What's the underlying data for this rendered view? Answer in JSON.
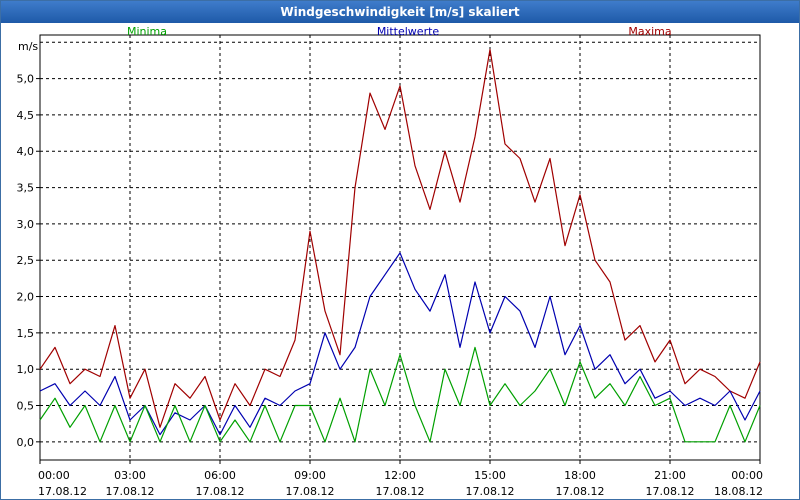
{
  "window": {
    "title": "Windgeschwindigkeit [m/s] skaliert"
  },
  "chart_data": {
    "type": "line",
    "title": "Windgeschwindigkeit [m/s] skaliert",
    "ylabel": "m/s",
    "xlabel": "",
    "ylim": [
      -0.25,
      5.6
    ],
    "xlim": [
      0,
      24
    ],
    "grid": true,
    "legend_position": "top",
    "y_ticks": [
      "0,0",
      "0,5",
      "1,0",
      "1,5",
      "2,0",
      "2,5",
      "3,0",
      "3,5",
      "4,0",
      "4,5",
      "5,0"
    ],
    "x_ticks": [
      {
        "time": "00:00",
        "date": "17.08.12"
      },
      {
        "time": "03:00",
        "date": "17.08.12"
      },
      {
        "time": "06:00",
        "date": "17.08.12"
      },
      {
        "time": "09:00",
        "date": "17.08.12"
      },
      {
        "time": "12:00",
        "date": "17.08.12"
      },
      {
        "time": "15:00",
        "date": "17.08.12"
      },
      {
        "time": "18:00",
        "date": "17.08.12"
      },
      {
        "time": "21:00",
        "date": "17.08.12"
      },
      {
        "time": "00:00",
        "date": "18.08.12"
      }
    ],
    "series": [
      {
        "name": "Minima",
        "color": "#00a000",
        "x": [
          0,
          0.5,
          1,
          1.5,
          2,
          2.5,
          3,
          3.5,
          4,
          4.5,
          5,
          5.5,
          6,
          6.5,
          7,
          7.5,
          8,
          8.5,
          9,
          9.5,
          10,
          10.5,
          11,
          11.5,
          12,
          12.5,
          13,
          13.5,
          14,
          14.5,
          15,
          15.5,
          16,
          16.5,
          17,
          17.5,
          18,
          18.5,
          19,
          19.5,
          20,
          20.5,
          21,
          21.5,
          22,
          22.5,
          23,
          23.5,
          24
        ],
        "values": [
          0.3,
          0.6,
          0.2,
          0.5,
          0.0,
          0.5,
          0.0,
          0.5,
          0.0,
          0.5,
          0.0,
          0.5,
          0.0,
          0.3,
          0.0,
          0.5,
          0.0,
          0.5,
          0.5,
          0.0,
          0.6,
          0.0,
          1.0,
          0.5,
          1.2,
          0.5,
          0.0,
          1.0,
          0.5,
          1.3,
          0.5,
          0.8,
          0.5,
          0.7,
          1.0,
          0.5,
          1.1,
          0.6,
          0.8,
          0.5,
          0.9,
          0.5,
          0.6,
          0.0,
          0.0,
          0.0,
          0.5,
          0.0,
          0.5
        ]
      },
      {
        "name": "Mittelwerte",
        "color": "#0000b0",
        "x": [
          0,
          0.5,
          1,
          1.5,
          2,
          2.5,
          3,
          3.5,
          4,
          4.5,
          5,
          5.5,
          6,
          6.5,
          7,
          7.5,
          8,
          8.5,
          9,
          9.5,
          10,
          10.5,
          11,
          11.5,
          12,
          12.5,
          13,
          13.5,
          14,
          14.5,
          15,
          15.5,
          16,
          16.5,
          17,
          17.5,
          18,
          18.5,
          19,
          19.5,
          20,
          20.5,
          21,
          21.5,
          22,
          22.5,
          23,
          23.5,
          24
        ],
        "values": [
          0.7,
          0.8,
          0.5,
          0.7,
          0.5,
          0.9,
          0.3,
          0.5,
          0.1,
          0.4,
          0.3,
          0.5,
          0.1,
          0.5,
          0.2,
          0.6,
          0.5,
          0.7,
          0.8,
          1.5,
          1.0,
          1.3,
          2.0,
          2.3,
          2.6,
          2.1,
          1.8,
          2.3,
          1.3,
          2.2,
          1.5,
          2.0,
          1.8,
          1.3,
          2.0,
          1.2,
          1.6,
          1.0,
          1.2,
          0.8,
          1.0,
          0.6,
          0.7,
          0.5,
          0.6,
          0.5,
          0.7,
          0.3,
          0.7
        ]
      },
      {
        "name": "Maxima",
        "color": "#a00000",
        "x": [
          0,
          0.5,
          1,
          1.5,
          2,
          2.5,
          3,
          3.5,
          4,
          4.5,
          5,
          5.5,
          6,
          6.5,
          7,
          7.5,
          8,
          8.5,
          9,
          9.5,
          10,
          10.5,
          11,
          11.5,
          12,
          12.5,
          13,
          13.5,
          14,
          14.5,
          15,
          15.5,
          16,
          16.5,
          17,
          17.5,
          18,
          18.5,
          19,
          19.5,
          20,
          20.5,
          21,
          21.5,
          22,
          22.5,
          23,
          23.5,
          24
        ],
        "values": [
          1.0,
          1.3,
          0.8,
          1.0,
          0.9,
          1.6,
          0.6,
          1.0,
          0.2,
          0.8,
          0.6,
          0.9,
          0.3,
          0.8,
          0.5,
          1.0,
          0.9,
          1.4,
          2.9,
          1.8,
          1.2,
          3.5,
          4.8,
          4.3,
          4.9,
          3.8,
          3.2,
          4.0,
          3.3,
          4.2,
          5.4,
          4.1,
          3.9,
          3.3,
          3.9,
          2.7,
          3.4,
          2.5,
          2.2,
          1.4,
          1.6,
          1.1,
          1.4,
          0.8,
          1.0,
          0.9,
          0.7,
          0.6,
          1.1
        ]
      }
    ]
  }
}
